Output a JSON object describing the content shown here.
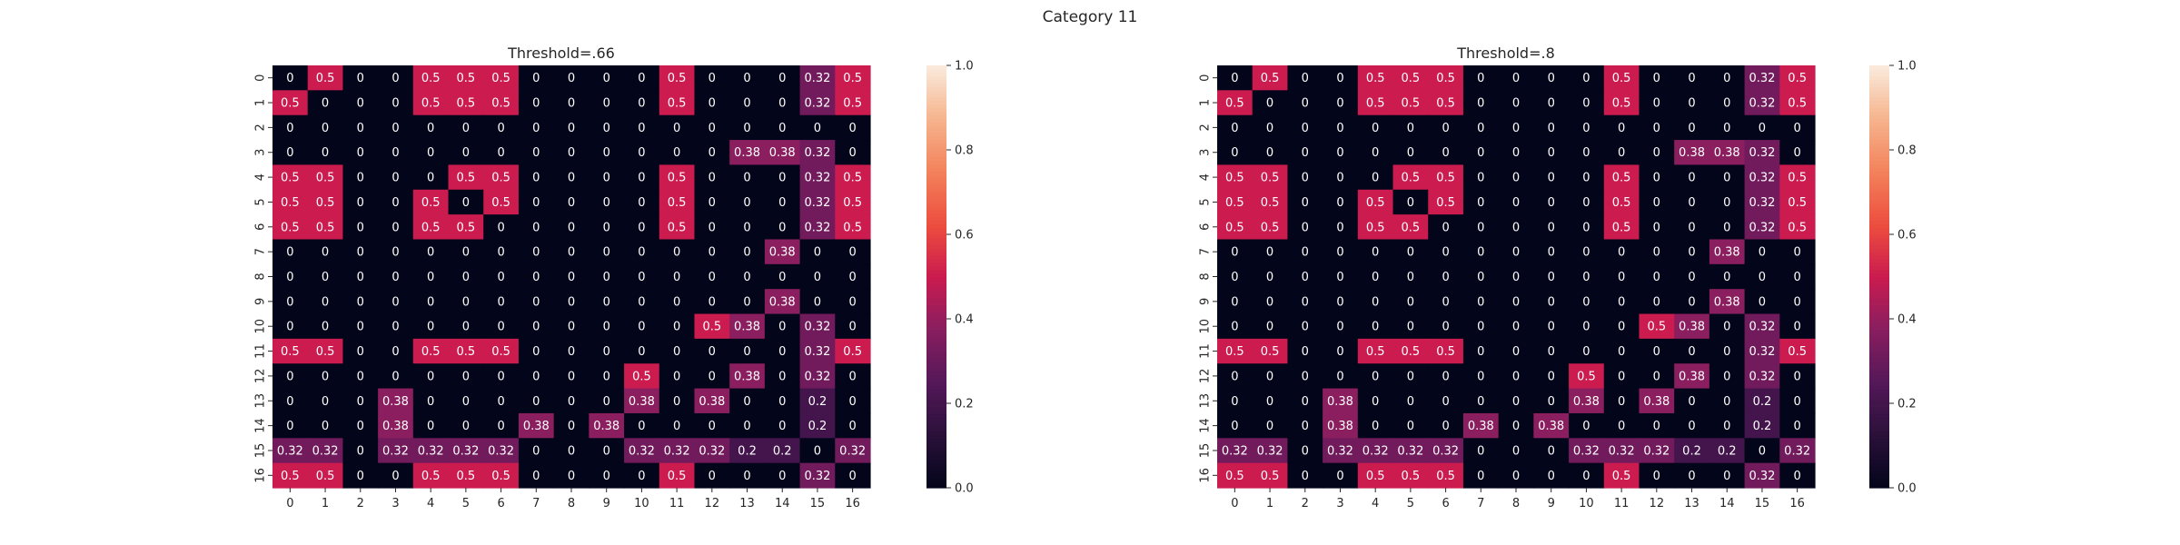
{
  "figure": {
    "suptitle": "Category 11"
  },
  "chart_data": [
    {
      "type": "heatmap",
      "title": "Threshold=.66",
      "x_labels": [
        "0",
        "1",
        "2",
        "3",
        "4",
        "5",
        "6",
        "7",
        "8",
        "9",
        "10",
        "11",
        "12",
        "13",
        "14",
        "15",
        "16"
      ],
      "y_labels": [
        "0",
        "1",
        "2",
        "3",
        "4",
        "5",
        "6",
        "7",
        "8",
        "9",
        "10",
        "11",
        "12",
        "13",
        "14",
        "15",
        "16"
      ],
      "values": [
        [
          0,
          0.5,
          0,
          0,
          0.5,
          0.5,
          0.5,
          0,
          0,
          0,
          0,
          0.5,
          0,
          0,
          0,
          0.32,
          0.5
        ],
        [
          0.5,
          0,
          0,
          0,
          0.5,
          0.5,
          0.5,
          0,
          0,
          0,
          0,
          0.5,
          0,
          0,
          0,
          0.32,
          0.5
        ],
        [
          0,
          0,
          0,
          0,
          0,
          0,
          0,
          0,
          0,
          0,
          0,
          0,
          0,
          0,
          0,
          0,
          0
        ],
        [
          0,
          0,
          0,
          0,
          0,
          0,
          0,
          0,
          0,
          0,
          0,
          0,
          0,
          0.38,
          0.38,
          0.32,
          0
        ],
        [
          0.5,
          0.5,
          0,
          0,
          0,
          0.5,
          0.5,
          0,
          0,
          0,
          0,
          0.5,
          0,
          0,
          0,
          0.32,
          0.5
        ],
        [
          0.5,
          0.5,
          0,
          0,
          0.5,
          0,
          0.5,
          0,
          0,
          0,
          0,
          0.5,
          0,
          0,
          0,
          0.32,
          0.5
        ],
        [
          0.5,
          0.5,
          0,
          0,
          0.5,
          0.5,
          0,
          0,
          0,
          0,
          0,
          0.5,
          0,
          0,
          0,
          0.32,
          0.5
        ],
        [
          0,
          0,
          0,
          0,
          0,
          0,
          0,
          0,
          0,
          0,
          0,
          0,
          0,
          0,
          0.38,
          0,
          0
        ],
        [
          0,
          0,
          0,
          0,
          0,
          0,
          0,
          0,
          0,
          0,
          0,
          0,
          0,
          0,
          0,
          0,
          0
        ],
        [
          0,
          0,
          0,
          0,
          0,
          0,
          0,
          0,
          0,
          0,
          0,
          0,
          0,
          0,
          0.38,
          0,
          0
        ],
        [
          0,
          0,
          0,
          0,
          0,
          0,
          0,
          0,
          0,
          0,
          0,
          0,
          0.5,
          0.38,
          0,
          0.32,
          0
        ],
        [
          0.5,
          0.5,
          0,
          0,
          0.5,
          0.5,
          0.5,
          0,
          0,
          0,
          0,
          0,
          0,
          0,
          0,
          0.32,
          0.5
        ],
        [
          0,
          0,
          0,
          0,
          0,
          0,
          0,
          0,
          0,
          0,
          0.5,
          0,
          0,
          0.38,
          0,
          0.32,
          0
        ],
        [
          0,
          0,
          0,
          0.38,
          0,
          0,
          0,
          0,
          0,
          0,
          0.38,
          0,
          0.38,
          0,
          0,
          0.2,
          0
        ],
        [
          0,
          0,
          0,
          0.38,
          0,
          0,
          0,
          0.38,
          0,
          0.38,
          0,
          0,
          0,
          0,
          0,
          0.2,
          0
        ],
        [
          0.32,
          0.32,
          0,
          0.32,
          0.32,
          0.32,
          0.32,
          0,
          0,
          0,
          0.32,
          0.32,
          0.32,
          0.2,
          0.2,
          0,
          0.32
        ],
        [
          0.5,
          0.5,
          0,
          0,
          0.5,
          0.5,
          0.5,
          0,
          0,
          0,
          0,
          0.5,
          0,
          0,
          0,
          0.32,
          0
        ]
      ],
      "vmin": 0,
      "vmax": 1,
      "colormap": "rocket",
      "colorbar_ticks": [
        "0.0",
        "0.2",
        "0.4",
        "0.6",
        "0.8",
        "1.0"
      ],
      "annotated": true,
      "grid": false
    },
    {
      "type": "heatmap",
      "title": "Threshold=.8",
      "x_labels": [
        "0",
        "1",
        "2",
        "3",
        "4",
        "5",
        "6",
        "7",
        "8",
        "9",
        "10",
        "11",
        "12",
        "13",
        "14",
        "15",
        "16"
      ],
      "y_labels": [
        "0",
        "1",
        "2",
        "3",
        "4",
        "5",
        "6",
        "7",
        "8",
        "9",
        "10",
        "11",
        "12",
        "13",
        "14",
        "15",
        "16"
      ],
      "values": [
        [
          0,
          0.5,
          0,
          0,
          0.5,
          0.5,
          0.5,
          0,
          0,
          0,
          0,
          0.5,
          0,
          0,
          0,
          0.32,
          0.5
        ],
        [
          0.5,
          0,
          0,
          0,
          0.5,
          0.5,
          0.5,
          0,
          0,
          0,
          0,
          0.5,
          0,
          0,
          0,
          0.32,
          0.5
        ],
        [
          0,
          0,
          0,
          0,
          0,
          0,
          0,
          0,
          0,
          0,
          0,
          0,
          0,
          0,
          0,
          0,
          0
        ],
        [
          0,
          0,
          0,
          0,
          0,
          0,
          0,
          0,
          0,
          0,
          0,
          0,
          0,
          0.38,
          0.38,
          0.32,
          0
        ],
        [
          0.5,
          0.5,
          0,
          0,
          0,
          0.5,
          0.5,
          0,
          0,
          0,
          0,
          0.5,
          0,
          0,
          0,
          0.32,
          0.5
        ],
        [
          0.5,
          0.5,
          0,
          0,
          0.5,
          0,
          0.5,
          0,
          0,
          0,
          0,
          0.5,
          0,
          0,
          0,
          0.32,
          0.5
        ],
        [
          0.5,
          0.5,
          0,
          0,
          0.5,
          0.5,
          0,
          0,
          0,
          0,
          0,
          0.5,
          0,
          0,
          0,
          0.32,
          0.5
        ],
        [
          0,
          0,
          0,
          0,
          0,
          0,
          0,
          0,
          0,
          0,
          0,
          0,
          0,
          0,
          0.38,
          0,
          0
        ],
        [
          0,
          0,
          0,
          0,
          0,
          0,
          0,
          0,
          0,
          0,
          0,
          0,
          0,
          0,
          0,
          0,
          0
        ],
        [
          0,
          0,
          0,
          0,
          0,
          0,
          0,
          0,
          0,
          0,
          0,
          0,
          0,
          0,
          0.38,
          0,
          0
        ],
        [
          0,
          0,
          0,
          0,
          0,
          0,
          0,
          0,
          0,
          0,
          0,
          0,
          0.5,
          0.38,
          0,
          0.32,
          0
        ],
        [
          0.5,
          0.5,
          0,
          0,
          0.5,
          0.5,
          0.5,
          0,
          0,
          0,
          0,
          0,
          0,
          0,
          0,
          0.32,
          0.5
        ],
        [
          0,
          0,
          0,
          0,
          0,
          0,
          0,
          0,
          0,
          0,
          0.5,
          0,
          0,
          0.38,
          0,
          0.32,
          0
        ],
        [
          0,
          0,
          0,
          0.38,
          0,
          0,
          0,
          0,
          0,
          0,
          0.38,
          0,
          0.38,
          0,
          0,
          0.2,
          0
        ],
        [
          0,
          0,
          0,
          0.38,
          0,
          0,
          0,
          0.38,
          0,
          0.38,
          0,
          0,
          0,
          0,
          0,
          0.2,
          0
        ],
        [
          0.32,
          0.32,
          0,
          0.32,
          0.32,
          0.32,
          0.32,
          0,
          0,
          0,
          0.32,
          0.32,
          0.32,
          0.2,
          0.2,
          0,
          0.32
        ],
        [
          0.5,
          0.5,
          0,
          0,
          0.5,
          0.5,
          0.5,
          0,
          0,
          0,
          0,
          0.5,
          0,
          0,
          0,
          0.32,
          0
        ]
      ],
      "vmin": 0,
      "vmax": 1,
      "colormap": "rocket",
      "colorbar_ticks": [
        "0.0",
        "0.2",
        "0.4",
        "0.6",
        "0.8",
        "1.0"
      ],
      "annotated": true,
      "grid": false
    }
  ]
}
